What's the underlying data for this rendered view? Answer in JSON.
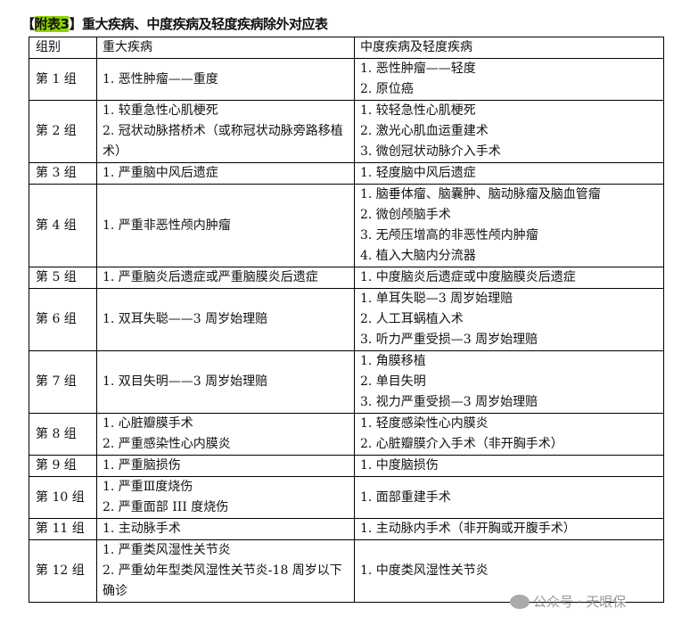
{
  "title": {
    "bracket_open": "【",
    "tag": "附表3",
    "bracket_close": "】",
    "text": "重大疾病、中度疾病及轻度疾病除外对应表",
    "highlight_color": "#8fd400"
  },
  "headers": [
    "组别",
    "重大疾病",
    "中度疾病及轻度疾病"
  ],
  "rows": [
    {
      "group": "第 1 组",
      "major": [
        "1. 恶性肿瘤——重度"
      ],
      "minor": [
        "1. 恶性肿瘤——轻度",
        "2. 原位癌"
      ]
    },
    {
      "group": "第 2 组",
      "major": [
        "1. 较重急性心肌梗死",
        "2. 冠状动脉搭桥术（或称冠状动脉旁路移植术）"
      ],
      "minor": [
        "1. 较轻急性心肌梗死",
        "2. 激光心肌血运重建术",
        "3. 微创冠状动脉介入手术"
      ]
    },
    {
      "group": "第 3 组",
      "major": [
        "1. 严重脑中风后遗症"
      ],
      "minor": [
        "1. 轻度脑中风后遗症"
      ]
    },
    {
      "group": "第 4 组",
      "major": [
        "1. 严重非恶性颅内肿瘤"
      ],
      "minor": [
        "1. 脑垂体瘤、脑囊肿、脑动脉瘤及脑血管瘤",
        "2. 微创颅脑手术",
        "3. 无颅压增高的非恶性颅内肿瘤",
        "4. 植入大脑内分流器"
      ]
    },
    {
      "group": "第 5 组",
      "major": [
        "1. 严重脑炎后遗症或严重脑膜炎后遗症"
      ],
      "minor": [
        "1. 中度脑炎后遗症或中度脑膜炎后遗症"
      ]
    },
    {
      "group": "第 6 组",
      "major": [
        "1. 双耳失聪——3 周岁始理赔"
      ],
      "minor": [
        "1. 单耳失聪—3 周岁始理赔",
        "2. 人工耳蜗植入术",
        "3. 听力严重受损—3 周岁始理赔"
      ]
    },
    {
      "group": "第 7 组",
      "major": [
        "1. 双目失明——3 周岁始理赔"
      ],
      "minor": [
        "1. 角膜移植",
        "2. 单目失明",
        "3. 视力严重受损—3 周岁始理赔"
      ]
    },
    {
      "group": "第 8 组",
      "major": [
        "1. 心脏瓣膜手术",
        "2. 严重感染性心内膜炎"
      ],
      "minor": [
        "1. 轻度感染性心内膜炎",
        "2. 心脏瓣膜介入手术（非开胸手术）"
      ]
    },
    {
      "group": "第 9 组",
      "major": [
        "1. 严重脑损伤"
      ],
      "minor": [
        "1. 中度脑损伤"
      ]
    },
    {
      "group": "第 10 组",
      "major": [
        "1. 严重Ⅲ度烧伤",
        "2. 严重面部 III 度烧伤"
      ],
      "minor": [
        "1. 面部重建手术"
      ]
    },
    {
      "group": "第 11 组",
      "major": [
        "1. 主动脉手术"
      ],
      "minor": [
        "1. 主动脉内手术（非开胸或开腹手术）"
      ]
    },
    {
      "group": "第 12 组",
      "major": [
        "1. 严重类风湿性关节炎",
        "2. 严重幼年型类风湿性关节炎-18 周岁以下确诊"
      ],
      "minor": [
        "1. 中度类风湿性关节炎"
      ]
    }
  ],
  "watermark": "公众号 · 天眼保"
}
